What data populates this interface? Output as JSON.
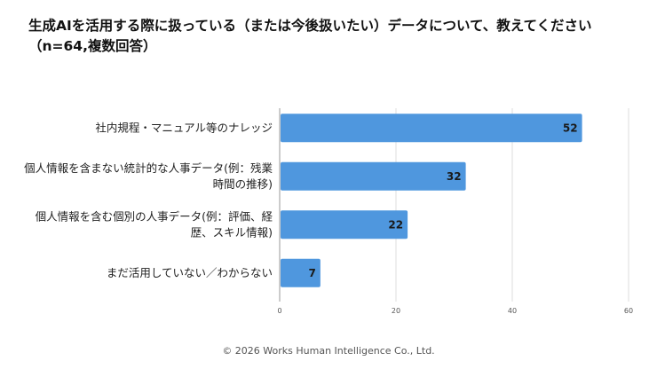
{
  "title_line1": "生成AIを活用する際に扱っている（または今後扱いたい）データについて、教えてください",
  "title_line2": "（n=64,複数回答）",
  "footer": "© 2026 Works Human Intelligence Co., Ltd.",
  "chart_data": {
    "type": "bar",
    "orientation": "horizontal",
    "title": "生成AIを活用する際に扱っている（または今後扱いたい）データについて、教えてください（n=64,複数回答）",
    "categories": [
      [
        "社内規程・マニュアル等のナレッジ"
      ],
      [
        "個人情報を含まない統計的な人事データ(例：残業",
        "時間の推移)"
      ],
      [
        "個人情報を含む個別の人事データ(例：評価、経",
        "歴、スキル情報)"
      ],
      [
        "まだ活用していない／わからない"
      ]
    ],
    "values": [
      52,
      32,
      22,
      7
    ],
    "xlim": [
      0,
      60
    ],
    "xticks": [
      0,
      20,
      40,
      60
    ],
    "grid": true,
    "bar_color": "#4f97de",
    "xlabel": "",
    "ylabel": ""
  }
}
